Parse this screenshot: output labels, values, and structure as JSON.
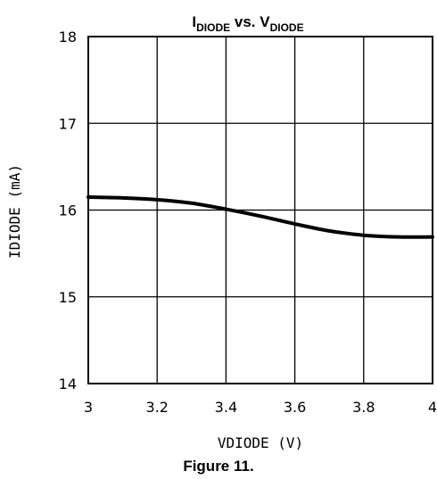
{
  "chart_data": {
    "type": "line",
    "title": {
      "main_1": "I",
      "sub_1": "DIODE",
      "main_2": " vs. V",
      "sub_2": "DIODE"
    },
    "xlabel": "VDIODE (V)",
    "ylabel": "IDIODE (mA)",
    "xlim": [
      3,
      4
    ],
    "ylim": [
      14,
      18
    ],
    "x_ticks": [
      "3",
      "3.2",
      "3.4",
      "3.6",
      "3.8",
      "4"
    ],
    "y_ticks": [
      "14",
      "15",
      "16",
      "17",
      "18"
    ],
    "grid": true,
    "series": [
      {
        "x": [
          3.0,
          3.1,
          3.2,
          3.3,
          3.4,
          3.5,
          3.6,
          3.7,
          3.8,
          3.9,
          4.0
        ],
        "y": [
          16.15,
          16.14,
          16.12,
          16.08,
          16.01,
          15.93,
          15.84,
          15.76,
          15.71,
          15.69,
          15.69
        ]
      }
    ],
    "caption": "Figure 11.",
    "colors": {
      "line": "#000000",
      "grid": "#000000",
      "background": "#ffffff"
    }
  }
}
